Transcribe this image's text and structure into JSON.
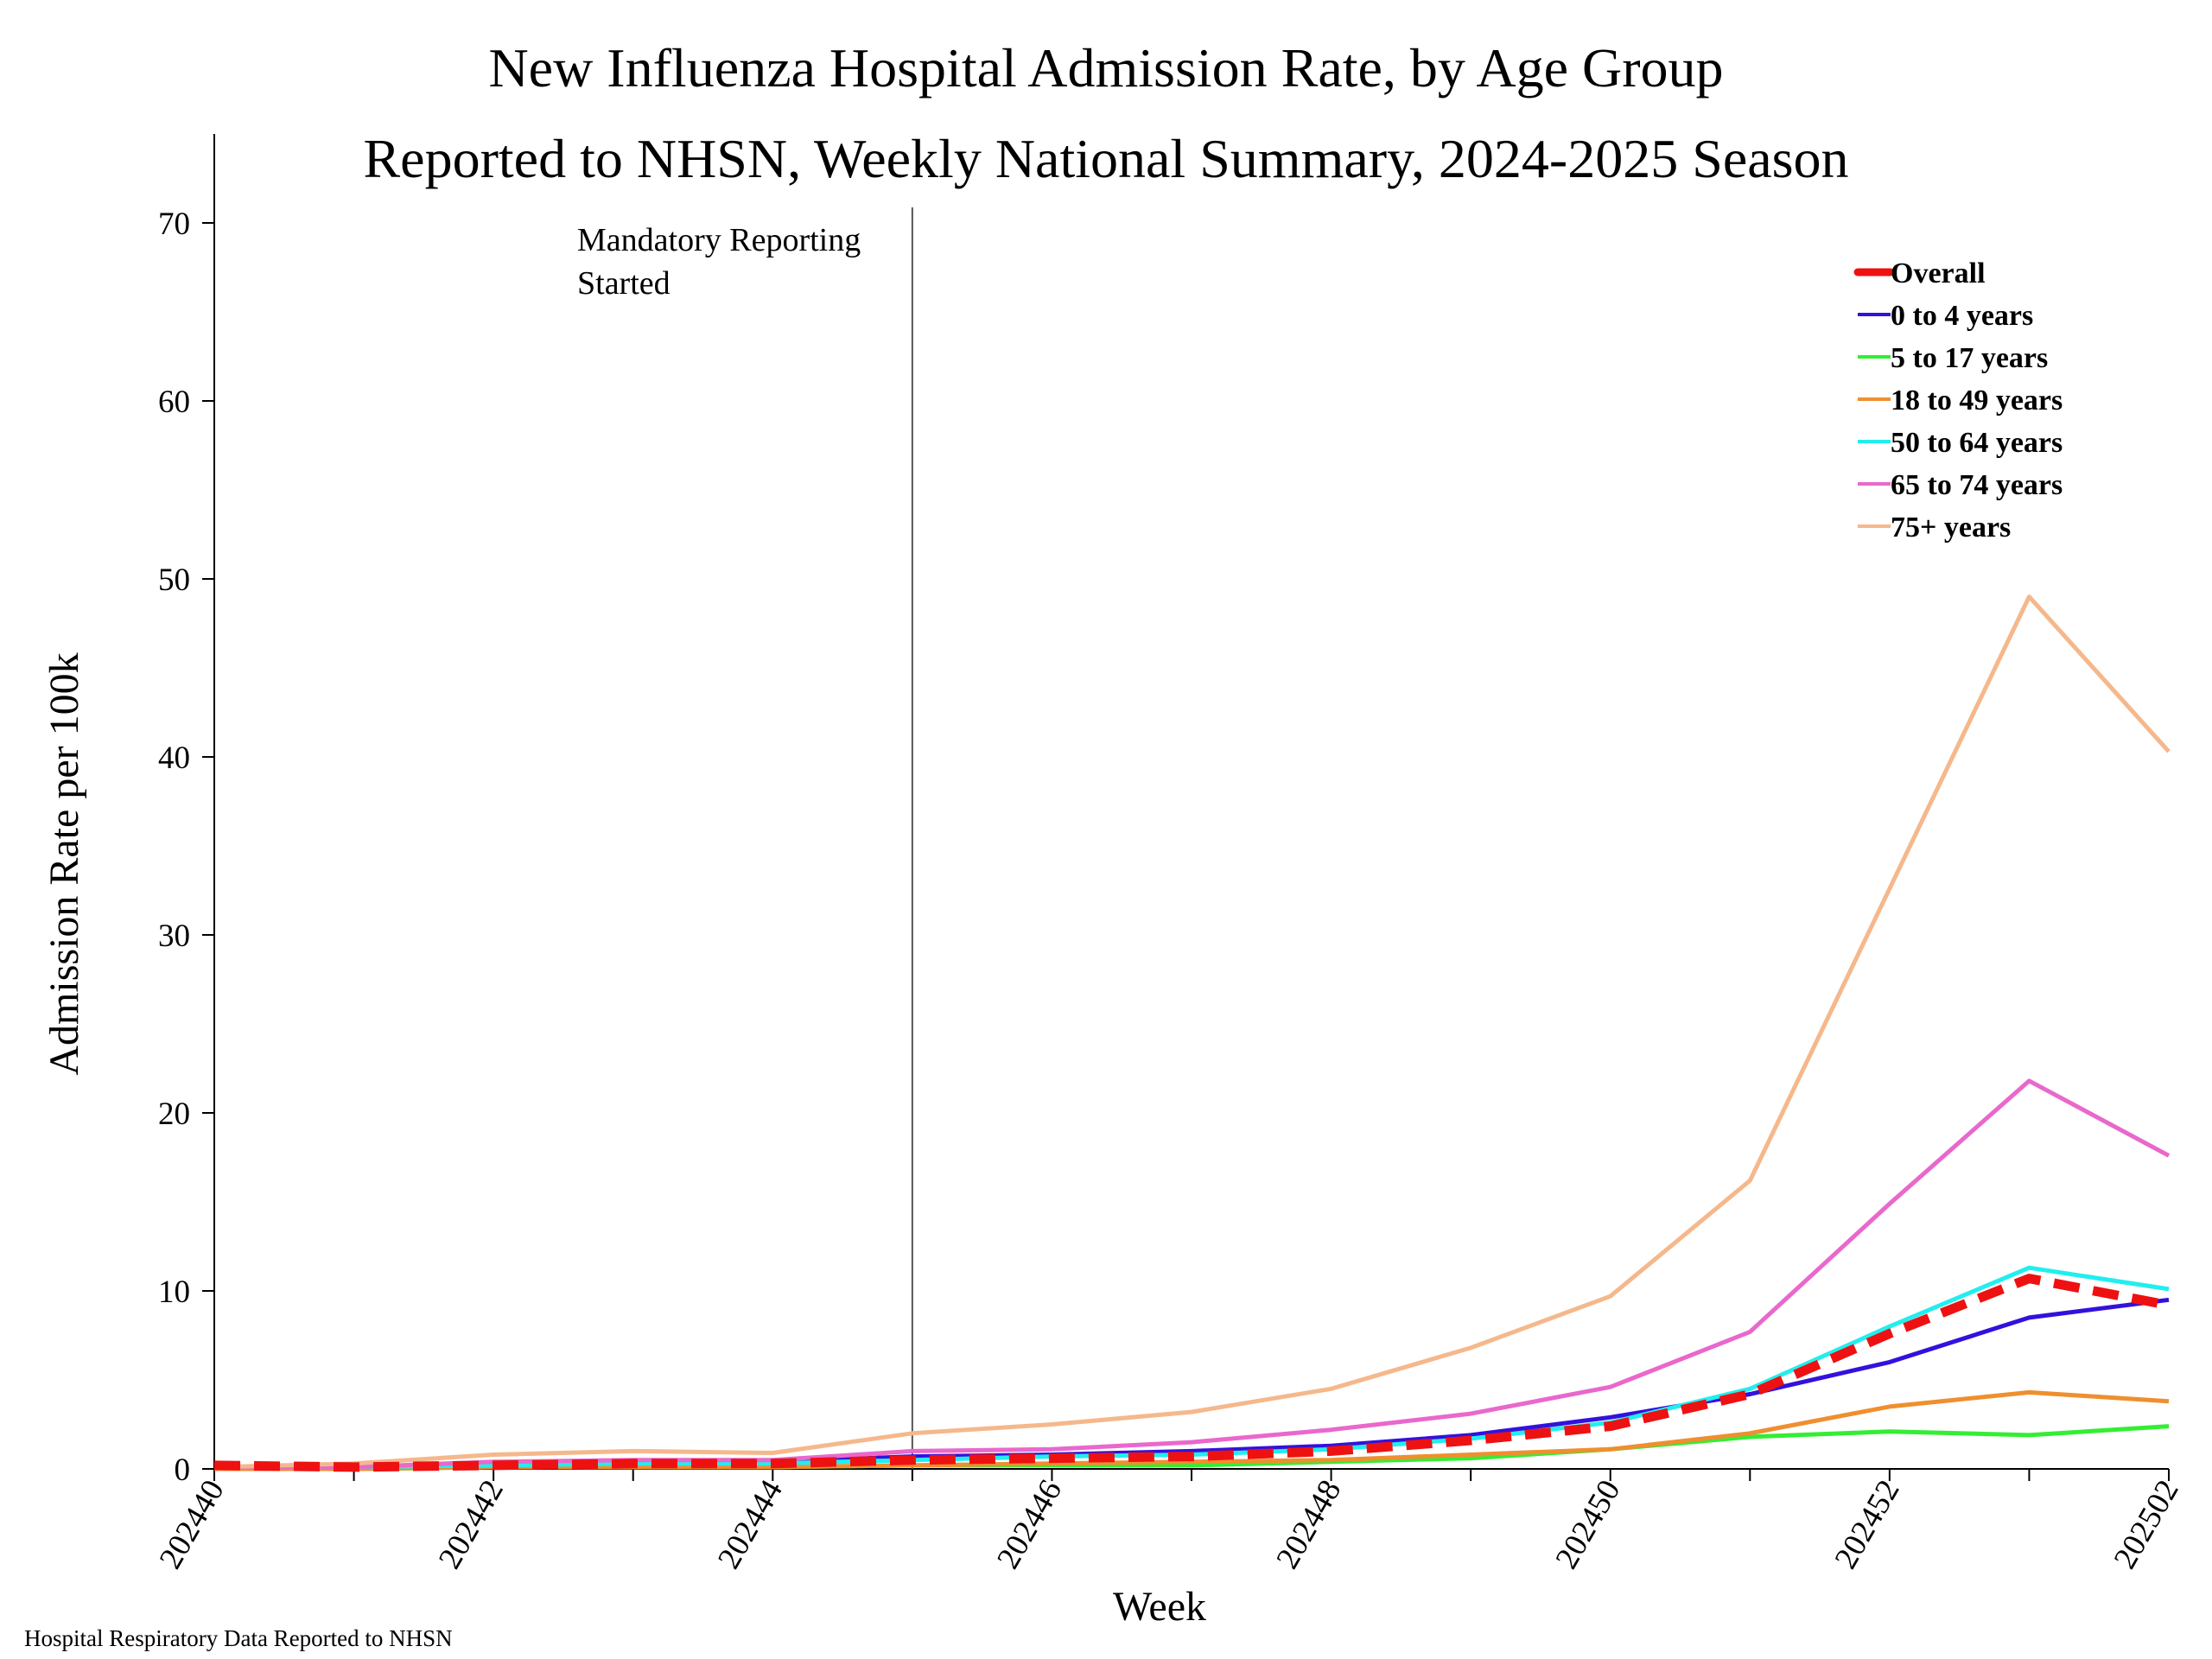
{
  "chart_data": {
    "type": "line",
    "title": "New Influenza Hospital Admission Rate, by Age Group",
    "subtitle": "Reported to NHSN, Weekly National Summary, 2024-2025 Season",
    "xlabel": "Week",
    "ylabel": "Admission Rate per 100k",
    "ylim": [
      0,
      75
    ],
    "yticks": [
      "0",
      "10",
      "20",
      "30",
      "40",
      "50",
      "60",
      "70"
    ],
    "x": [
      "202440",
      "202441",
      "202442",
      "202443",
      "202444",
      "202445",
      "202446",
      "202447",
      "202448",
      "202449",
      "202450",
      "202451",
      "202452",
      "202453",
      "202502"
    ],
    "xtick_labels": [
      "202440",
      "202442",
      "202444",
      "202446",
      "202448",
      "202450",
      "202452",
      "202502"
    ],
    "grid": false,
    "legend_position": "top-right",
    "annotation": {
      "line1": "Mandatory Reporting",
      "line2": "Started",
      "at_week": "202445"
    },
    "series": [
      {
        "name": "Overall",
        "color": "#ee1111",
        "dashed": true,
        "values": [
          0.2,
          0.1,
          0.2,
          0.3,
          0.3,
          0.5,
          0.6,
          0.7,
          1.0,
          1.6,
          2.4,
          4.2,
          7.6,
          10.7,
          9.2
        ]
      },
      {
        "name": "0 to 4 years",
        "color": "#3311dd",
        "dashed": false,
        "values": [
          0.1,
          0.1,
          0.3,
          0.4,
          0.4,
          0.7,
          0.8,
          1.0,
          1.3,
          1.9,
          2.9,
          4.2,
          6.0,
          8.5,
          9.5
        ]
      },
      {
        "name": "5 to 17 years",
        "color": "#33ee33",
        "dashed": false,
        "values": [
          0.0,
          0.0,
          0.1,
          0.1,
          0.1,
          0.2,
          0.2,
          0.2,
          0.4,
          0.6,
          1.1,
          1.8,
          2.1,
          1.9,
          2.4
        ]
      },
      {
        "name": "18 to 49 years",
        "color": "#ef8f2f",
        "dashed": false,
        "values": [
          0.0,
          0.0,
          0.1,
          0.1,
          0.1,
          0.2,
          0.3,
          0.4,
          0.5,
          0.8,
          1.1,
          2.0,
          3.5,
          4.3,
          3.8
        ]
      },
      {
        "name": "50 to 64 years",
        "color": "#22eeee",
        "dashed": false,
        "values": [
          0.1,
          0.1,
          0.2,
          0.3,
          0.3,
          0.5,
          0.7,
          0.8,
          1.1,
          1.7,
          2.6,
          4.5,
          8.0,
          11.3,
          10.1
        ]
      },
      {
        "name": "65 to 74 years",
        "color": "#e968cc",
        "dashed": false,
        "values": [
          0.1,
          0.1,
          0.4,
          0.5,
          0.5,
          1.0,
          1.1,
          1.5,
          2.2,
          3.1,
          4.6,
          7.7,
          14.9,
          21.8,
          17.6
        ]
      },
      {
        "name": "75+ years",
        "color": "#f5b88c",
        "dashed": false,
        "values": [
          0.1,
          0.3,
          0.8,
          1.0,
          0.9,
          2.0,
          2.5,
          3.2,
          4.5,
          6.8,
          9.7,
          16.2,
          32.6,
          49.0,
          40.3
        ]
      }
    ]
  },
  "footer": "Hospital Respiratory Data Reported to NHSN"
}
